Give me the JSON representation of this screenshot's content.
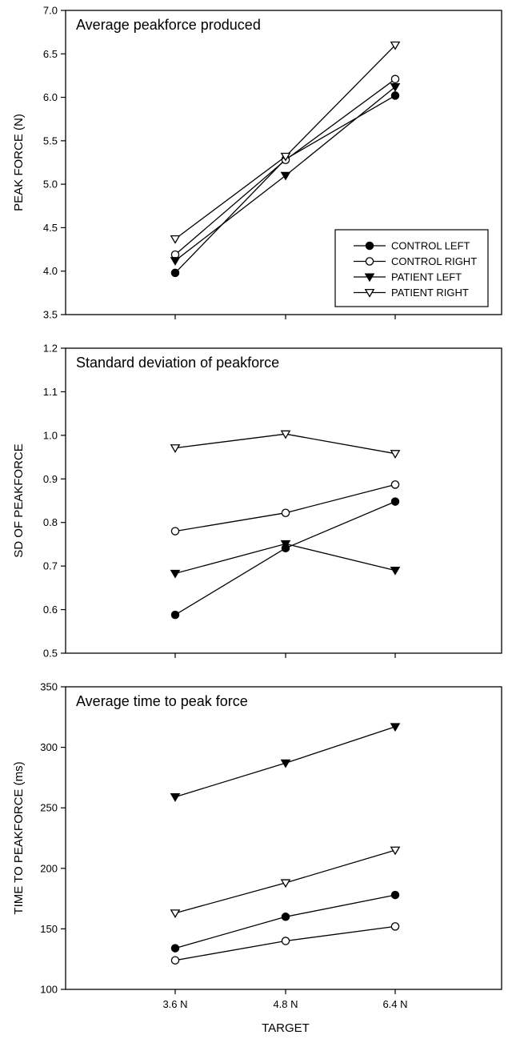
{
  "chart_data": [
    {
      "type": "line",
      "title": "Average peakforce produced",
      "xlabel": "",
      "ylabel": "PEAK FORCE (N)",
      "categories": [
        "3.6 N",
        "4.8 N",
        "6.4 N"
      ],
      "ylim": [
        3.5,
        7.0
      ],
      "yticks": [
        "3.5",
        "4.0",
        "4.5",
        "5.0",
        "5.5",
        "6.0",
        "6.5",
        "7.0"
      ],
      "show_xtick_labels": false,
      "grid": false,
      "legend": "bottom-right",
      "series": [
        {
          "name": "CONTROL LEFT",
          "marker": "circle-filled",
          "values": [
            3.98,
            5.29,
            6.02
          ]
        },
        {
          "name": "CONTROL RIGHT",
          "marker": "circle-open",
          "values": [
            4.19,
            5.28,
            6.21
          ]
        },
        {
          "name": "PATIENT LEFT",
          "marker": "triangle-down-filled",
          "values": [
            4.12,
            5.1,
            6.12
          ]
        },
        {
          "name": "PATIENT RIGHT",
          "marker": "triangle-down-open",
          "values": [
            4.37,
            5.32,
            6.6
          ]
        }
      ]
    },
    {
      "type": "line",
      "title": "Standard deviation of peakforce",
      "xlabel": "",
      "ylabel": "SD OF PEAKFORCE",
      "categories": [
        "3.6 N",
        "4.8 N",
        "6.4 N"
      ],
      "ylim": [
        0.5,
        1.2
      ],
      "yticks": [
        "0.5",
        "0.6",
        "0.7",
        "0.8",
        "0.9",
        "1.0",
        "1.1",
        "1.2"
      ],
      "show_xtick_labels": false,
      "grid": false,
      "series": [
        {
          "marker": "circle-filled",
          "values": [
            0.588,
            0.741,
            0.848
          ]
        },
        {
          "marker": "circle-open",
          "values": [
            0.78,
            0.822,
            0.887
          ]
        },
        {
          "marker": "triangle-down-filled",
          "values": [
            0.683,
            0.751,
            0.69
          ]
        },
        {
          "marker": "triangle-down-open",
          "values": [
            0.971,
            1.003,
            0.958
          ]
        }
      ]
    },
    {
      "type": "line",
      "title": "Average time to peak force",
      "xlabel": "TARGET",
      "ylabel": "TIME TO PEAKFORCE (ms)",
      "categories": [
        "3.6 N",
        "4.8 N",
        "6.4 N"
      ],
      "ylim": [
        100,
        350
      ],
      "yticks": [
        "100",
        "150",
        "200",
        "250",
        "300",
        "350"
      ],
      "show_xtick_labels": true,
      "grid": false,
      "series": [
        {
          "marker": "circle-filled",
          "values": [
            134,
            160,
            178
          ]
        },
        {
          "marker": "circle-open",
          "values": [
            124,
            140,
            152
          ]
        },
        {
          "marker": "triangle-down-filled",
          "values": [
            259,
            287,
            317
          ]
        },
        {
          "marker": "triangle-down-open",
          "values": [
            163,
            188,
            215
          ]
        }
      ]
    }
  ]
}
